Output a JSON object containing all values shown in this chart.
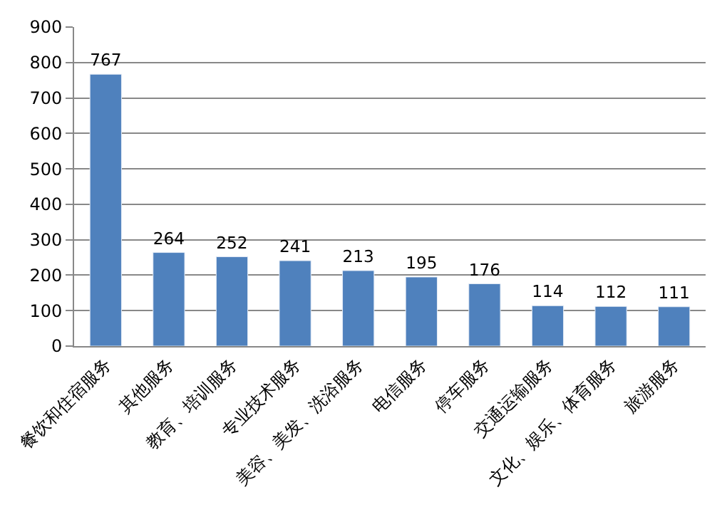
{
  "chart_data": {
    "type": "bar",
    "categories": [
      "餐饮和住宿服务",
      "其他服务",
      "教育、培训服务",
      "专业技术服务",
      "美容、美发、洗浴服务",
      "电信服务",
      "停车服务",
      "交通运输服务",
      "文化、娱乐、体育服务",
      "旅游服务"
    ],
    "values": [
      767,
      264,
      252,
      241,
      213,
      195,
      176,
      114,
      112,
      111
    ],
    "color": "#4f81bd",
    "ylim": [
      0,
      900
    ],
    "yticks": [
      0,
      100,
      200,
      300,
      400,
      500,
      600,
      700,
      800,
      900
    ],
    "grid": "y",
    "data_labels": true
  }
}
